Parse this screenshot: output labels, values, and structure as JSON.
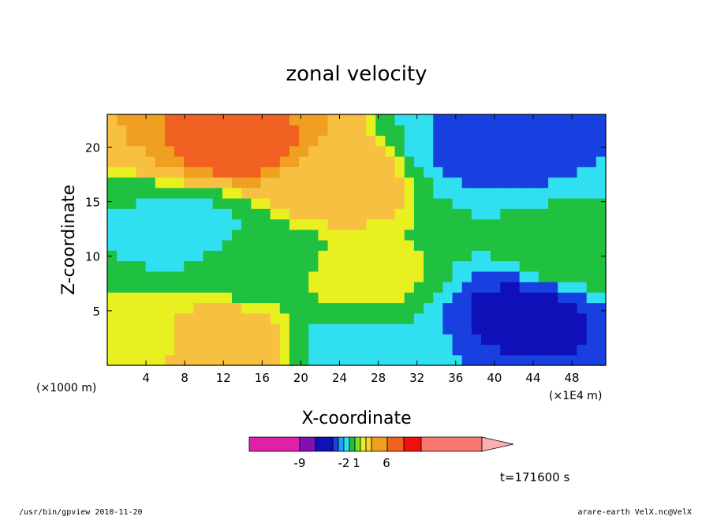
{
  "chart_data": {
    "type": "heatmap",
    "title": "zonal velocity",
    "xlabel": "X-coordinate",
    "ylabel": "Z-coordinate",
    "x_unit": "(×1E4 m)",
    "y_unit": "(×1000 m)",
    "xlim": [
      0,
      51.5
    ],
    "ylim": [
      0,
      23
    ],
    "x_ticks": [
      "4",
      "8",
      "12",
      "16",
      "20",
      "24",
      "28",
      "32",
      "36",
      "40",
      "44",
      "48"
    ],
    "y_ticks": [
      "5",
      "10",
      "15",
      "20"
    ],
    "colorbar": {
      "tick_labels": [
        "-9",
        "-2",
        "1",
        "6"
      ],
      "colors": [
        "#e020a8",
        "#8010b0",
        "#1010b8",
        "#1840e0",
        "#20a0f0",
        "#30e0f0",
        "#20c040",
        "#80e020",
        "#e8f020",
        "#f8d040",
        "#f0a020",
        "#f06020",
        "#f01010",
        "#f87870",
        "#f8b0b0"
      ]
    },
    "regions": [
      {
        "x": 3,
        "z": 2,
        "u": 1
      },
      {
        "x": 12,
        "z": 1.5,
        "u": 3
      },
      {
        "x": 26,
        "z": 1.5,
        "u": -3
      },
      {
        "x": 15,
        "z": 10,
        "u": 0
      },
      {
        "x": 9,
        "z": 12,
        "u": -3
      },
      {
        "x": 27,
        "z": 8,
        "u": 1
      },
      {
        "x": 23,
        "z": 17,
        "u": 3
      },
      {
        "x": 14,
        "z": 20,
        "u": 5
      },
      {
        "x": 40,
        "z": 20,
        "u": -6
      },
      {
        "x": 43,
        "z": 5,
        "u": -9
      },
      {
        "x": 48,
        "z": 10,
        "u": 0
      }
    ],
    "time_label": "t=171600 s"
  },
  "footer": {
    "left": "/usr/bin/gpview   2010-11-20",
    "right": "arare-earth_VelX.nc@VelX"
  }
}
